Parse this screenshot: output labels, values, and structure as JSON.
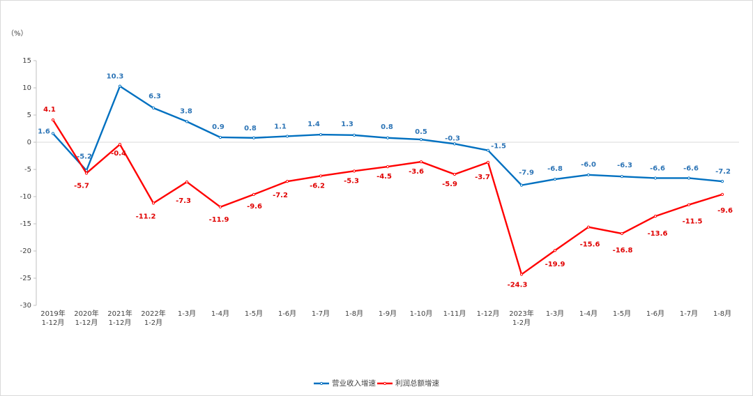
{
  "chart_data": {
    "type": "line",
    "title": "",
    "xlabel": "",
    "ylabel": "（%）",
    "ylim": [
      -30,
      15
    ],
    "yticks": [
      15,
      10,
      5,
      0,
      -5,
      -10,
      -15,
      -20,
      -25,
      -30
    ],
    "grid": false,
    "zero_line": true,
    "legend": "bottom-center",
    "categories": [
      [
        "2019年",
        "1-12月"
      ],
      [
        "2020年",
        "1-12月"
      ],
      [
        "2021年",
        "1-12月"
      ],
      [
        "2022年",
        "1-2月"
      ],
      [
        "1-3月"
      ],
      [
        "1-4月"
      ],
      [
        "1-5月"
      ],
      [
        "1-6月"
      ],
      [
        "1-7月"
      ],
      [
        "1-8月"
      ],
      [
        "1-9月"
      ],
      [
        "1-10月"
      ],
      [
        "1-11月"
      ],
      [
        "1-12月"
      ],
      [
        "2023年",
        "1-2月"
      ],
      [
        "1-3月"
      ],
      [
        "1-4月"
      ],
      [
        "1-5月"
      ],
      [
        "1-6月"
      ],
      [
        "1-7月"
      ],
      [
        "1-8月"
      ]
    ],
    "series": [
      {
        "name": "营业收入增速",
        "color": "#0070C0",
        "label_color": "#2E75B6",
        "values": [
          1.6,
          -5.2,
          10.3,
          6.3,
          3.8,
          0.9,
          0.8,
          1.1,
          1.4,
          1.3,
          0.8,
          0.5,
          -0.3,
          -1.5,
          -7.9,
          -6.8,
          -6.0,
          -6.3,
          -6.6,
          -6.6,
          -7.2
        ]
      },
      {
        "name": "利润总额增速",
        "color": "#FF0000",
        "label_color": "#E00000",
        "values": [
          4.1,
          -5.7,
          -0.4,
          -11.2,
          -7.3,
          -11.9,
          -9.6,
          -7.2,
          -6.2,
          -5.3,
          -4.5,
          -3.6,
          -5.9,
          -3.7,
          -24.3,
          -19.9,
          -15.6,
          -16.8,
          -13.6,
          -11.5,
          -9.6
        ]
      }
    ]
  }
}
